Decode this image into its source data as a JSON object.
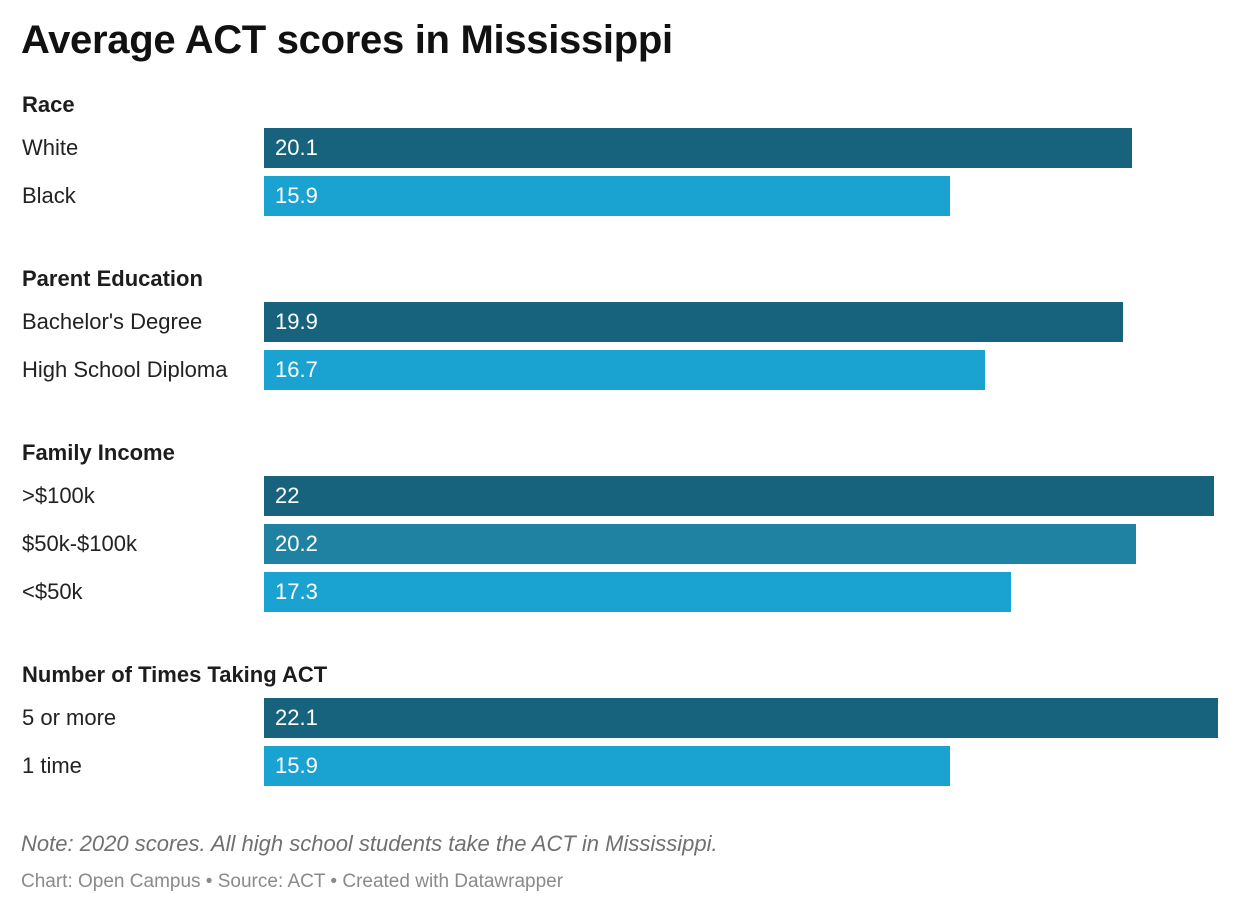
{
  "note": "Note: 2020 scores. All high school students take the ACT in Mississippi.",
  "footer": {
    "chart_credit": "Chart: Open Campus",
    "separator": " • ",
    "source": "Source: ACT",
    "created_with": "Created with Datawrapper"
  },
  "colors": {
    "dark": "#17637e",
    "mid": "#1f82a2",
    "light": "#1aa3d1"
  },
  "chart_data": {
    "type": "bar",
    "orientation": "horizontal",
    "title": "Average ACT scores in Mississippi",
    "xlim": [
      0,
      22.1
    ],
    "grid": false,
    "legend": "none",
    "groups": [
      {
        "label": "Race",
        "rows": [
          {
            "label": "White",
            "value": 20.1,
            "value_label": "20.1",
            "color": "dark"
          },
          {
            "label": "Black",
            "value": 15.9,
            "value_label": "15.9",
            "color": "light"
          }
        ]
      },
      {
        "label": "Parent Education",
        "rows": [
          {
            "label": "Bachelor's Degree",
            "value": 19.9,
            "value_label": "19.9",
            "color": "dark"
          },
          {
            "label": "High School Diploma",
            "value": 16.7,
            "value_label": "16.7",
            "color": "light"
          }
        ]
      },
      {
        "label": "Family Income",
        "rows": [
          {
            "label": ">$100k",
            "value": 22,
            "value_label": "22",
            "color": "dark"
          },
          {
            "label": "$50k-$100k",
            "value": 20.2,
            "value_label": "20.2",
            "color": "mid"
          },
          {
            "label": "<$50k",
            "value": 17.3,
            "value_label": "17.3",
            "color": "light"
          }
        ]
      },
      {
        "label": "Number of Times Taking ACT",
        "rows": [
          {
            "label": "5 or more",
            "value": 22.1,
            "value_label": "22.1",
            "color": "dark"
          },
          {
            "label": "1 time",
            "value": 15.9,
            "value_label": "15.9",
            "color": "light"
          }
        ]
      }
    ]
  }
}
